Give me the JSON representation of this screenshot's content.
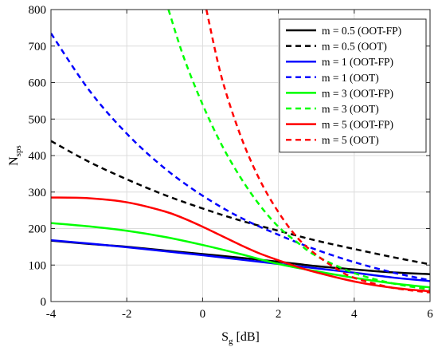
{
  "chart_data": {
    "type": "line",
    "xlabel": "S",
    "xlabel_sub": "g",
    "xlabel_unit": " [dB]",
    "ylabel": "N",
    "ylabel_sub": "sps",
    "xlim": [
      -4,
      6
    ],
    "ylim": [
      0,
      800
    ],
    "xticks": [
      -4,
      -2,
      0,
      2,
      4,
      6
    ],
    "yticks": [
      0,
      100,
      200,
      300,
      400,
      500,
      600,
      700,
      800
    ],
    "grid": true,
    "legend_position": "top-right",
    "series": [
      {
        "name": "m = 0.5 (OOT-FP)",
        "color": "#000000",
        "dash": "solid",
        "x": [
          -4,
          -3,
          -2,
          -1,
          0,
          1,
          2,
          3,
          4,
          5,
          6
        ],
        "y": [
          167,
          158,
          150,
          140,
          130,
          120,
          109,
          97,
          88,
          80,
          75
        ]
      },
      {
        "name": "m = 0.5 (OOT)",
        "color": "#000000",
        "dash": "dashed",
        "x": [
          -4,
          -3,
          -2,
          -1,
          0,
          1,
          2,
          3,
          4,
          5,
          6
        ],
        "y": [
          440,
          383,
          335,
          292,
          255,
          222,
          194,
          167,
          144,
          122,
          102
        ]
      },
      {
        "name": "m = 1 (OOT-FP)",
        "color": "#0000ff",
        "dash": "solid",
        "x": [
          -4,
          -3,
          -2,
          -1,
          0,
          1,
          2,
          3,
          4,
          5,
          6
        ],
        "y": [
          168,
          159,
          149,
          138,
          127,
          115,
          103,
          91,
          79,
          66,
          56
        ]
      },
      {
        "name": "m = 1 (OOT)",
        "color": "#0000ff",
        "dash": "dashed",
        "x": [
          -4,
          -3,
          -2,
          -1,
          0,
          1,
          2,
          3,
          4,
          5,
          6
        ],
        "y": [
          735,
          580,
          460,
          365,
          290,
          230,
          183,
          142,
          108,
          80,
          58
        ]
      },
      {
        "name": "m = 3 (OOT-FP)",
        "color": "#00ff00",
        "dash": "solid",
        "x": [
          -4,
          -3,
          -2,
          -1,
          0,
          1,
          2,
          3,
          4,
          5,
          6
        ],
        "y": [
          215,
          206,
          194,
          177,
          155,
          130,
          103,
          83,
          65,
          50,
          39
        ]
      },
      {
        "name": "m = 3 (OOT)",
        "color": "#00ff00",
        "dash": "dashed",
        "x": [
          -0.9,
          -0.5,
          0,
          0.5,
          1,
          1.5,
          2,
          2.5,
          3,
          4,
          5,
          6
        ],
        "y": [
          800,
          670,
          540,
          430,
          340,
          265,
          205,
          162,
          125,
          78,
          50,
          33
        ]
      },
      {
        "name": "m = 5 (OOT-FP)",
        "color": "#ff0000",
        "dash": "solid",
        "x": [
          -4,
          -3,
          -2,
          -1,
          -0.5,
          0,
          0.5,
          1,
          1.5,
          2,
          2.5,
          3,
          4,
          5,
          6
        ],
        "y": [
          285,
          283,
          272,
          247,
          228,
          205,
          180,
          155,
          132,
          113,
          95,
          80,
          55,
          38,
          28
        ]
      },
      {
        "name": "m = 5 (OOT)",
        "color": "#ff0000",
        "dash": "dashed",
        "x": [
          0.1,
          0.5,
          1,
          1.5,
          2,
          2.5,
          3,
          3.5,
          4,
          5,
          6
        ],
        "y": [
          800,
          615,
          455,
          335,
          245,
          175,
          128,
          92,
          65,
          38,
          25
        ]
      }
    ]
  }
}
